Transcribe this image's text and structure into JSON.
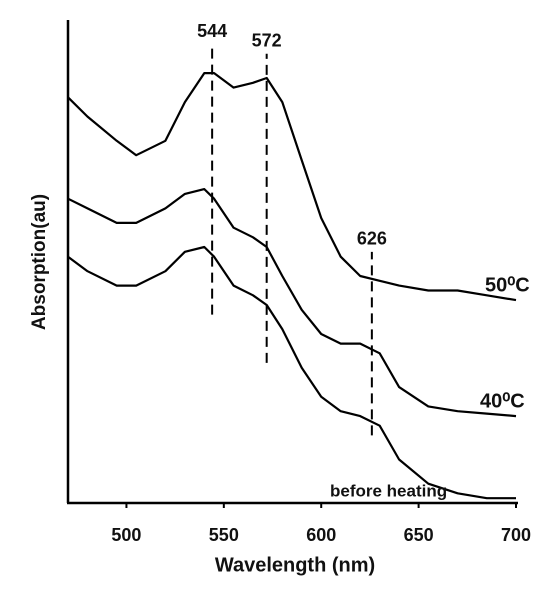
{
  "chart_data": {
    "type": "line",
    "x_label": "Wavelength (nm)",
    "y_label": "Absorption(au)",
    "x": [
      470,
      480,
      495,
      505,
      520,
      530,
      540,
      545,
      555,
      565,
      572,
      580,
      590,
      600,
      610,
      620,
      630,
      640,
      655,
      670,
      685,
      700
    ],
    "series": [
      {
        "name": "50⁰C",
        "color": "#000000",
        "values": [
          0.84,
          0.8,
          0.75,
          0.72,
          0.75,
          0.83,
          0.89,
          0.89,
          0.86,
          0.87,
          0.88,
          0.83,
          0.71,
          0.59,
          0.51,
          0.47,
          0.46,
          0.45,
          0.44,
          0.44,
          0.43,
          0.42
        ]
      },
      {
        "name": "40⁰C",
        "color": "#000000",
        "values": [
          0.63,
          0.61,
          0.58,
          0.58,
          0.61,
          0.64,
          0.65,
          0.63,
          0.57,
          0.55,
          0.53,
          0.47,
          0.4,
          0.35,
          0.33,
          0.33,
          0.31,
          0.24,
          0.2,
          0.19,
          0.185,
          0.18
        ]
      },
      {
        "name": "before heating",
        "color": "#000000",
        "values": [
          0.51,
          0.48,
          0.45,
          0.45,
          0.48,
          0.52,
          0.53,
          0.51,
          0.45,
          0.43,
          0.41,
          0.36,
          0.28,
          0.22,
          0.19,
          0.18,
          0.16,
          0.09,
          0.04,
          0.02,
          0.01,
          0.01
        ]
      }
    ],
    "annotations": [
      {
        "x": 544,
        "y_range": [
          0.39,
          0.95
        ]
      },
      {
        "x": 572,
        "y_range": [
          0.29,
          0.93
        ]
      },
      {
        "x": 626,
        "y_range": [
          0.14,
          0.52
        ]
      }
    ],
    "xlim": [
      470,
      700
    ],
    "xticks": [
      500,
      550,
      600,
      650,
      700
    ],
    "ylim": [
      0,
      1
    ]
  }
}
